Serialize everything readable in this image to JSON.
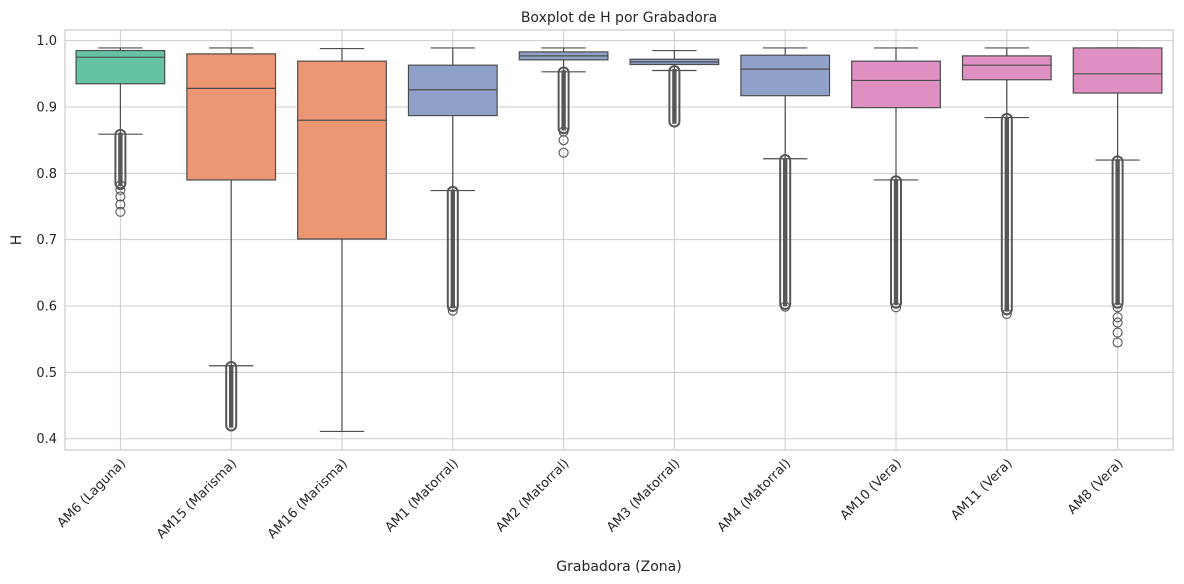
{
  "chart_data": {
    "type": "boxplot",
    "title": "Boxplot de H por Grabadora",
    "xlabel": "Grabadora (Zona)",
    "ylabel": "H",
    "ylim": [
      0.383,
      1.016
    ],
    "yticks": [
      0.4,
      0.5,
      0.6,
      0.7,
      0.8,
      0.9,
      1.0
    ],
    "ytick_labels": [
      "0.4",
      "0.5",
      "0.6",
      "0.7",
      "0.8",
      "0.9",
      "1.0"
    ],
    "grid": true,
    "colors": {
      "Laguna": "#66c2a5",
      "Marisma": "#ec9673",
      "Matorral": "#8fa0c9",
      "Vera": "#de90c2",
      "line": "#4d4d4d",
      "grid": "#cccccc",
      "outlier": "#575757"
    },
    "categories": [
      "AM6 (Laguna)",
      "AM15 (Marisma)",
      "AM16 (Marisma)",
      "AM1 (Matorral)",
      "AM2 (Matorral)",
      "AM3 (Matorral)",
      "AM4 (Matorral)",
      "AM10 (Vera)",
      "AM11 (Vera)",
      "AM8 (Vera)"
    ],
    "series": [
      {
        "category": "AM6 (Laguna)",
        "zone": "Laguna",
        "q1": 0.935,
        "median": 0.975,
        "q3": 0.985,
        "whisker_low": 0.859,
        "whisker_high": 0.989,
        "outliers": [
          0.742,
          0.753,
          0.765,
          0.775,
          0.782
        ],
        "outlier_dense": [
          0.785,
          0.858
        ]
      },
      {
        "category": "AM15 (Marisma)",
        "zone": "Marisma",
        "q1": 0.79,
        "median": 0.928,
        "q3": 0.98,
        "whisker_low": 0.51,
        "whisker_high": 0.989,
        "outliers": [],
        "outlier_dense": [
          0.42,
          0.508
        ]
      },
      {
        "category": "AM16 (Marisma)",
        "zone": "Marisma",
        "q1": 0.701,
        "median": 0.88,
        "q3": 0.969,
        "whisker_low": 0.411,
        "whisker_high": 0.988,
        "outliers": [],
        "outlier_dense": null
      },
      {
        "category": "AM1 (Matorral)",
        "zone": "Matorral",
        "q1": 0.887,
        "median": 0.926,
        "q3": 0.963,
        "whisker_low": 0.774,
        "whisker_high": 0.989,
        "outliers": [
          0.593
        ],
        "outlier_dense": [
          0.6,
          0.772
        ]
      },
      {
        "category": "AM2 (Matorral)",
        "zone": "Matorral",
        "q1": 0.971,
        "median": 0.977,
        "q3": 0.983,
        "whisker_low": 0.953,
        "whisker_high": 0.989,
        "outliers": [
          0.831,
          0.85,
          0.863
        ],
        "outlier_dense": [
          0.868,
          0.952
        ]
      },
      {
        "category": "AM3 (Matorral)",
        "zone": "Matorral",
        "q1": 0.964,
        "median": 0.968,
        "q3": 0.972,
        "whisker_low": 0.955,
        "whisker_high": 0.985,
        "outliers": [],
        "outlier_dense": [
          0.878,
          0.954
        ]
      },
      {
        "category": "AM4 (Matorral)",
        "zone": "Matorral",
        "q1": 0.917,
        "median": 0.957,
        "q3": 0.978,
        "whisker_low": 0.822,
        "whisker_high": 0.989,
        "outliers": [
          0.599
        ],
        "outlier_dense": [
          0.603,
          0.82
        ]
      },
      {
        "category": "AM10 (Vera)",
        "zone": "Vera",
        "q1": 0.899,
        "median": 0.94,
        "q3": 0.969,
        "whisker_low": 0.79,
        "whisker_high": 0.989,
        "outliers": [
          0.598
        ],
        "outlier_dense": [
          0.605,
          0.788
        ]
      },
      {
        "category": "AM11 (Vera)",
        "zone": "Vera",
        "q1": 0.941,
        "median": 0.963,
        "q3": 0.977,
        "whisker_low": 0.884,
        "whisker_high": 0.989,
        "outliers": [
          0.588
        ],
        "outlier_dense": [
          0.595,
          0.882
        ]
      },
      {
        "category": "AM8 (Vera)",
        "zone": "Vera",
        "q1": 0.921,
        "median": 0.95,
        "q3": 0.989,
        "whisker_low": 0.82,
        "whisker_high": 0.989,
        "outliers": [
          0.545,
          0.56,
          0.575,
          0.583,
          0.598
        ],
        "outlier_dense": [
          0.605,
          0.818
        ]
      }
    ]
  }
}
